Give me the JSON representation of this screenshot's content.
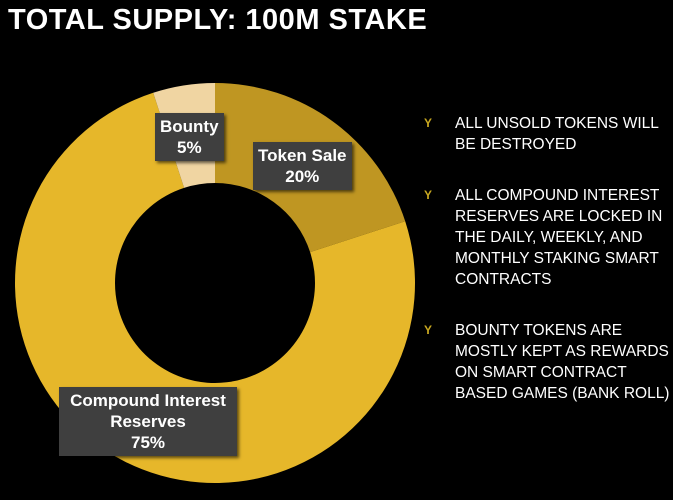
{
  "title": "TOTAL SUPPLY: 100M STAKE",
  "chart_data": {
    "type": "pie",
    "subtype": "donut",
    "title": "TOTAL SUPPLY: 100M STAKE",
    "categories": [
      "Token Sale",
      "Compound Interest Reserves",
      "Bounty"
    ],
    "values": [
      20,
      75,
      5
    ],
    "value_labels": [
      "20%",
      "75%",
      "5%"
    ],
    "colors": [
      "#BF9622",
      "#E6B72A",
      "#F0D5A2"
    ],
    "start": "top, clockwise"
  },
  "bullet_icon": "gold-bullet-icon",
  "bullets": [
    "ALL UNSOLD TOKENS WILL BE DESTROYED",
    "ALL COMPOUND INTEREST RESERVES ARE LOCKED IN THE DAILY, WEEKLY, AND MONTHLY STAKING SMART CONTRACTS",
    "BOUNTY TOKENS ARE MOSTLY KEPT AS REWARDS ON SMART CONTRACT BASED GAMES (BANK ROLL)"
  ]
}
